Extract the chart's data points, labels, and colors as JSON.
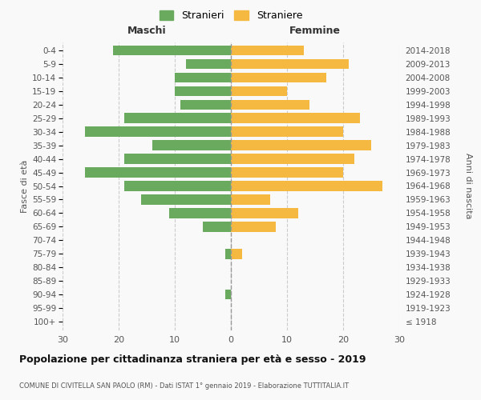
{
  "age_groups": [
    "100+",
    "95-99",
    "90-94",
    "85-89",
    "80-84",
    "75-79",
    "70-74",
    "65-69",
    "60-64",
    "55-59",
    "50-54",
    "45-49",
    "40-44",
    "35-39",
    "30-34",
    "25-29",
    "20-24",
    "15-19",
    "10-14",
    "5-9",
    "0-4"
  ],
  "birth_years": [
    "≤ 1918",
    "1919-1923",
    "1924-1928",
    "1929-1933",
    "1934-1938",
    "1939-1943",
    "1944-1948",
    "1949-1953",
    "1954-1958",
    "1959-1963",
    "1964-1968",
    "1969-1973",
    "1974-1978",
    "1979-1983",
    "1984-1988",
    "1989-1993",
    "1994-1998",
    "1999-2003",
    "2004-2008",
    "2009-2013",
    "2014-2018"
  ],
  "males": [
    0,
    0,
    1,
    0,
    0,
    1,
    0,
    5,
    11,
    16,
    19,
    26,
    19,
    14,
    26,
    19,
    9,
    10,
    10,
    8,
    21
  ],
  "females": [
    0,
    0,
    0,
    0,
    0,
    2,
    0,
    8,
    12,
    7,
    27,
    20,
    22,
    25,
    20,
    23,
    14,
    10,
    17,
    21,
    13
  ],
  "male_color": "#6aaa5e",
  "female_color": "#f5b942",
  "background_color": "#f9f9f9",
  "grid_color": "#cccccc",
  "title": "Popolazione per cittadinanza straniera per età e sesso - 2019",
  "subtitle": "COMUNE DI CIVITELLA SAN PAOLO (RM) - Dati ISTAT 1° gennaio 2019 - Elaborazione TUTTITALIA.IT",
  "label_maschi": "Maschi",
  "label_femmine": "Femmine",
  "ylabel_left": "Fasce di età",
  "ylabel_right": "Anni di nascita",
  "legend_male": "Stranieri",
  "legend_female": "Straniere",
  "xlim": 30,
  "bar_height": 0.72
}
